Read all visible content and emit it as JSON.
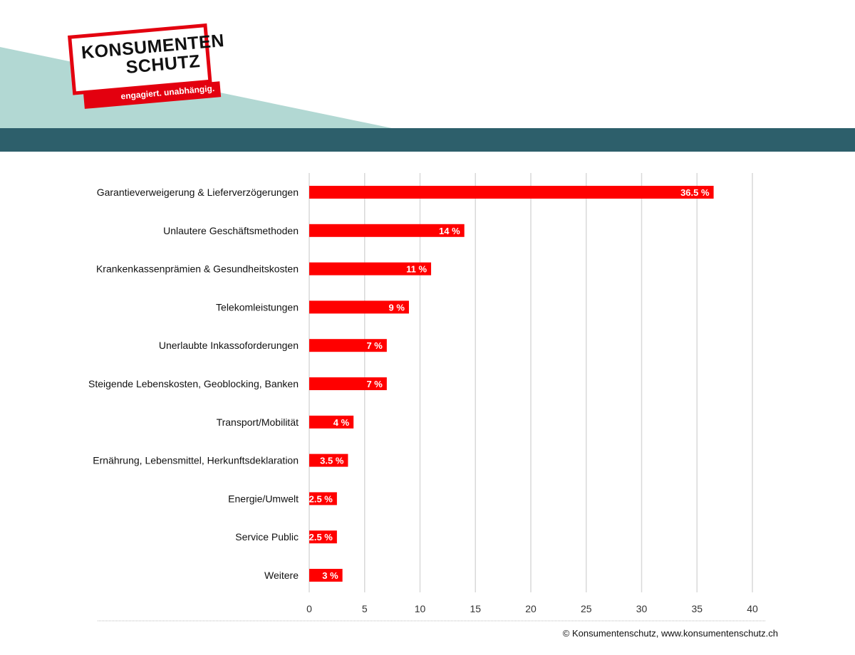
{
  "brand": {
    "name_line1": "KONSUMENTEN",
    "name_line2": "SCHUTZ",
    "tagline": "engagiert. unabhängig.",
    "accent_color": "#e3000f",
    "band_color": "#2d5f6b",
    "light_shape_color": "#b2d8d3"
  },
  "footer": {
    "copyright": "© Konsumentenschutz, www.konsumentenschutz.ch"
  },
  "chart_data": {
    "type": "bar",
    "orientation": "horizontal",
    "categories": [
      "Garantieverweigerung & Lieferverzögerungen",
      "Unlautere Geschäftsmethoden",
      "Krankenkassenprämien & Gesundheitskosten",
      "Telekomleistungen",
      "Unerlaubte Inkassoforderungen",
      "Steigende Lebenskosten, Geoblocking, Banken",
      "Transport/Mobilität",
      "Ernährung, Lebensmittel, Herkunftsdeklaration",
      "Energie/Umwelt",
      "Service Public",
      "Weitere"
    ],
    "values": [
      36.5,
      14,
      11,
      9,
      7,
      7,
      4,
      3.5,
      2.5,
      2.5,
      3
    ],
    "value_labels": [
      "36.5 %",
      "14 %",
      "11 %",
      "9 %",
      "7 %",
      "7 %",
      "4 %",
      "3.5 %",
      "2.5 %",
      "2.5 %",
      "3 %"
    ],
    "x_ticks": [
      "0",
      "5",
      "10",
      "15",
      "20",
      "25",
      "30",
      "35",
      "40"
    ],
    "xlim": [
      0,
      40
    ],
    "bar_color": "#ff0000",
    "grid": true,
    "legend": "none"
  }
}
